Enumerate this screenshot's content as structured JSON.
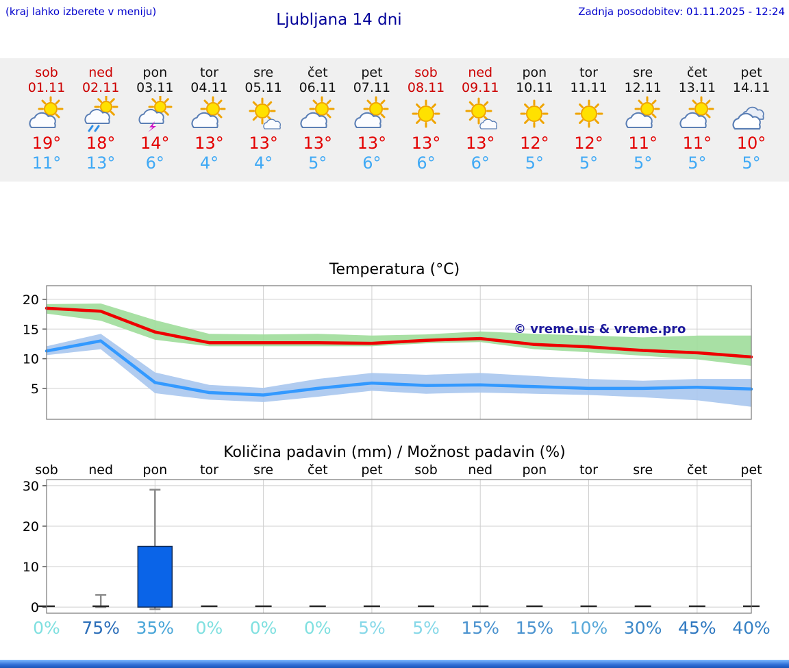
{
  "header": {
    "left_note": "(kraj lahko izberete v meniju)",
    "title": "Ljubljana 14 dni",
    "update": "Zadnja posodobitev: 01.11.2025 - 12:24"
  },
  "colors": {
    "header_blue": "#0000cc",
    "title_blue": "#000099",
    "weekend_red": "#cc0000",
    "high_temp_red": "#e30000",
    "low_temp_blue": "#3fa9f5",
    "strip_background": "#f0f0f0",
    "max_line": "#ee0000",
    "min_line": "#3399ff",
    "max_band": "#9fdd9a",
    "min_band": "#a9c7ee",
    "precip_bar": "#0a64e8"
  },
  "forecast": {
    "days": [
      {
        "name": "sob",
        "date": "01.11",
        "weekend": true,
        "icon": "sun-cloud",
        "high": "19°",
        "low": "11°"
      },
      {
        "name": "ned",
        "date": "02.11",
        "weekend": true,
        "icon": "sun-cloud-rain",
        "high": "18°",
        "low": "13°"
      },
      {
        "name": "pon",
        "date": "03.11",
        "weekend": false,
        "icon": "sun-cloud-storm",
        "high": "14°",
        "low": "6°"
      },
      {
        "name": "tor",
        "date": "04.11",
        "weekend": false,
        "icon": "sun-cloud",
        "high": "13°",
        "low": "4°"
      },
      {
        "name": "sre",
        "date": "05.11",
        "weekend": false,
        "icon": "sun-small-cloud",
        "high": "13°",
        "low": "4°"
      },
      {
        "name": "čet",
        "date": "06.11",
        "weekend": false,
        "icon": "sun-cloud",
        "high": "13°",
        "low": "5°"
      },
      {
        "name": "pet",
        "date": "07.11",
        "weekend": false,
        "icon": "sun-cloud",
        "high": "13°",
        "low": "6°"
      },
      {
        "name": "sob",
        "date": "08.11",
        "weekend": true,
        "icon": "sun",
        "high": "13°",
        "low": "6°"
      },
      {
        "name": "ned",
        "date": "09.11",
        "weekend": true,
        "icon": "sun-small-cloud",
        "high": "13°",
        "low": "6°"
      },
      {
        "name": "pon",
        "date": "10.11",
        "weekend": false,
        "icon": "sun",
        "high": "12°",
        "low": "5°"
      },
      {
        "name": "tor",
        "date": "11.11",
        "weekend": false,
        "icon": "sun",
        "high": "12°",
        "low": "5°"
      },
      {
        "name": "sre",
        "date": "12.11",
        "weekend": false,
        "icon": "sun-cloud",
        "high": "11°",
        "low": "5°"
      },
      {
        "name": "čet",
        "date": "13.11",
        "weekend": false,
        "icon": "sun-cloud",
        "high": "11°",
        "low": "5°"
      },
      {
        "name": "pet",
        "date": "14.11",
        "weekend": false,
        "icon": "cloud",
        "high": "10°",
        "low": "5°"
      }
    ]
  },
  "chart_data": [
    {
      "type": "line",
      "title": "Temperatura (°C)",
      "categories": [
        "sob",
        "ned",
        "pon",
        "tor",
        "sre",
        "čet",
        "pet",
        "sob",
        "ned",
        "pon",
        "tor",
        "sre",
        "čet",
        "pet"
      ],
      "ylim": [
        -0.2,
        22.3
      ],
      "yticks": [
        5,
        10,
        15,
        20
      ],
      "grid": true,
      "legend_position": "none",
      "watermark": "© vreme.us & vreme.pro",
      "series": [
        {
          "name": "max temperature",
          "color": "#ee0000",
          "values": [
            18.5,
            18.0,
            14.5,
            12.7,
            12.7,
            12.7,
            12.6,
            13.1,
            13.4,
            12.4,
            12.0,
            11.4,
            11.0,
            10.3
          ]
        },
        {
          "name": "min temperature",
          "color": "#3399ff",
          "values": [
            11.3,
            13.0,
            6.0,
            4.3,
            3.9,
            5.0,
            5.9,
            5.5,
            5.6,
            5.3,
            5.0,
            5.0,
            5.2,
            4.9
          ]
        }
      ],
      "bands": [
        {
          "name": "max-range",
          "color": "#9fdd9a",
          "upper": [
            19.2,
            19.3,
            16.5,
            14.2,
            14.1,
            14.2,
            13.9,
            14.1,
            14.6,
            14.2,
            13.9,
            13.6,
            13.9,
            13.9
          ],
          "lower": [
            17.6,
            16.4,
            13.2,
            12.1,
            12.1,
            12.1,
            12.1,
            12.6,
            12.8,
            11.6,
            11.1,
            10.5,
            9.9,
            8.8
          ]
        },
        {
          "name": "min-range",
          "color": "#a9c7ee",
          "upper": [
            12.1,
            14.2,
            7.7,
            5.6,
            5.1,
            6.6,
            7.6,
            7.3,
            7.6,
            7.1,
            6.6,
            6.3,
            6.6,
            6.6
          ],
          "lower": [
            10.6,
            11.6,
            4.2,
            3.1,
            2.7,
            3.6,
            4.6,
            4.1,
            4.3,
            4.1,
            3.9,
            3.5,
            3.0,
            1.9
          ]
        }
      ]
    },
    {
      "type": "bar",
      "title": "Količina padavin (mm) / Možnost padavin (%)",
      "categories": [
        "sob",
        "ned",
        "pon",
        "tor",
        "sre",
        "čet",
        "pet",
        "sob",
        "ned",
        "pon",
        "tor",
        "sre",
        "čet",
        "pet"
      ],
      "ylim": [
        -1.5,
        31.5
      ],
      "yticks": [
        0,
        10,
        20,
        30
      ],
      "ylabel": "mm",
      "bar_color": "#0a64e8",
      "values": [
        0,
        0.3,
        15,
        0,
        0,
        0,
        0,
        0,
        0,
        0,
        0,
        0,
        0,
        0
      ],
      "whiskers": [
        {
          "day": 1,
          "high": 3,
          "low": 0
        },
        {
          "day": 2,
          "high": 29,
          "low": -0.5
        }
      ],
      "probabilities": [
        {
          "label": "0%",
          "color": "#80e0e0"
        },
        {
          "label": "75%",
          "color": "#2a6db8"
        },
        {
          "label": "35%",
          "color": "#4aa6d8"
        },
        {
          "label": "0%",
          "color": "#80e0e0"
        },
        {
          "label": "0%",
          "color": "#80e0e0"
        },
        {
          "label": "0%",
          "color": "#80e0e0"
        },
        {
          "label": "5%",
          "color": "#86d8e8"
        },
        {
          "label": "5%",
          "color": "#86d8e8"
        },
        {
          "label": "15%",
          "color": "#4b93cf"
        },
        {
          "label": "15%",
          "color": "#4b93cf"
        },
        {
          "label": "10%",
          "color": "#58a8d8"
        },
        {
          "label": "30%",
          "color": "#3c88c8"
        },
        {
          "label": "45%",
          "color": "#2f78c0"
        },
        {
          "label": "40%",
          "color": "#3580c4"
        }
      ]
    }
  ]
}
